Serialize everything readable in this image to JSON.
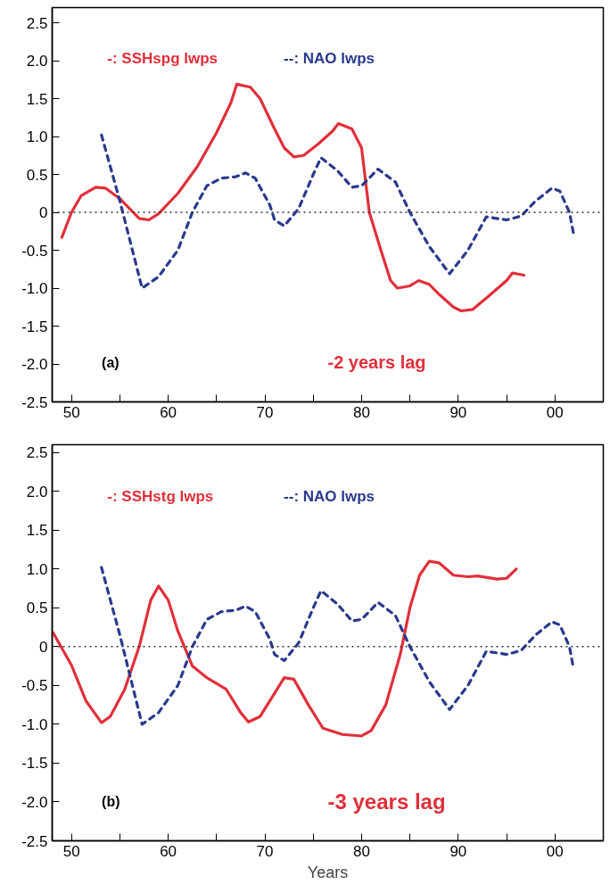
{
  "chart_data": [
    {
      "type": "line",
      "xlim": [
        1948,
        2005
      ],
      "ylim": [
        -2.5,
        2.7
      ],
      "xticks": [
        {
          "value": 1950,
          "label": "50"
        },
        {
          "value": 1955,
          "label": null
        },
        {
          "value": 1960,
          "label": "60"
        },
        {
          "value": 1965,
          "label": null
        },
        {
          "value": 1970,
          "label": "70"
        },
        {
          "value": 1975,
          "label": null
        },
        {
          "value": 1980,
          "label": "80"
        },
        {
          "value": 1985,
          "label": null
        },
        {
          "value": 1990,
          "label": "90"
        },
        {
          "value": 1995,
          "label": null
        },
        {
          "value": 2000,
          "label": "00"
        }
      ],
      "yticks": [
        {
          "value": -2.5,
          "label": "-2.5"
        },
        {
          "value": -2.0,
          "label": "-2.0"
        },
        {
          "value": -1.5,
          "label": "-1.5"
        },
        {
          "value": -1.0,
          "label": "-1.0"
        },
        {
          "value": -0.5,
          "label": "-0.5"
        },
        {
          "value": 0,
          "label": "0"
        },
        {
          "value": 0.5,
          "label": "0.5"
        },
        {
          "value": 1.0,
          "label": "1.0"
        },
        {
          "value": 1.5,
          "label": "1.5"
        },
        {
          "value": 2.0,
          "label": "2.0"
        },
        {
          "value": 2.5,
          "label": "2.5"
        }
      ],
      "grid": false,
      "legend": "top",
      "marker": "none",
      "ref_lines": [
        {
          "axis": "y",
          "value": 0,
          "label": null,
          "color": "#333333",
          "line_style": "dotted"
        }
      ],
      "annotations": [
        "(a)",
        "-2 years lag"
      ],
      "series": [
        {
          "name": "-: SSHspg lwps",
          "color": "#e0303a",
          "line_style": "solid",
          "x": [
            1949.0,
            1950.0,
            1951.0,
            1952.5,
            1953.5,
            1955.0,
            1957.0,
            1958.0,
            1959.0,
            1961.0,
            1963.0,
            1965.0,
            1966.5,
            1967.1,
            1968.5,
            1969.5,
            1971.0,
            1972.0,
            1973.0,
            1974.0,
            1975.5,
            1977.0,
            1977.6,
            1979.0,
            1980.0,
            1980.8,
            1982.0,
            1983.0,
            1983.7,
            1985.0,
            1985.9,
            1987.0,
            1988.0,
            1989.5,
            1990.3,
            1991.5,
            1993.0,
            1995.0,
            1995.6,
            1996.8
          ],
          "values": [
            -0.33,
            0.0,
            0.22,
            0.33,
            0.32,
            0.18,
            -0.08,
            -0.1,
            -0.02,
            0.25,
            0.6,
            1.05,
            1.45,
            1.69,
            1.65,
            1.5,
            1.1,
            0.85,
            0.73,
            0.75,
            0.9,
            1.07,
            1.17,
            1.1,
            0.85,
            0.0,
            -0.5,
            -0.9,
            -1.0,
            -0.97,
            -0.9,
            -0.95,
            -1.08,
            -1.25,
            -1.3,
            -1.28,
            -1.12,
            -0.9,
            -0.8,
            -0.83
          ]
        },
        {
          "name": "--: NAO lwps",
          "color": "#2a3a8c",
          "line_style": "dashed",
          "x": [
            1953.1,
            1955.0,
            1957.3,
            1959.0,
            1961.0,
            1962.5,
            1964.0,
            1965.5,
            1967.0,
            1968.0,
            1969.0,
            1970.5,
            1971.0,
            1972.0,
            1973.5,
            1975.0,
            1975.8,
            1977.5,
            1979.0,
            1980.0,
            1981.7,
            1983.5,
            1985.0,
            1987.0,
            1989.1,
            1991.0,
            1992.9,
            1995.0,
            1996.5,
            1998.0,
            1999.7,
            2000.5,
            2001.5,
            2001.9
          ],
          "values": [
            1.02,
            0.15,
            -1.0,
            -0.85,
            -0.5,
            0.0,
            0.35,
            0.45,
            0.47,
            0.52,
            0.45,
            0.1,
            -0.1,
            -0.18,
            0.05,
            0.5,
            0.72,
            0.55,
            0.33,
            0.35,
            0.57,
            0.4,
            0.0,
            -0.45,
            -0.81,
            -0.5,
            -0.06,
            -0.1,
            -0.05,
            0.15,
            0.32,
            0.28,
            0.0,
            -0.27
          ]
        }
      ]
    },
    {
      "type": "line",
      "xlabel": "Years",
      "xlim": [
        1948,
        2005
      ],
      "ylim": [
        -2.5,
        2.6
      ],
      "xticks": [
        {
          "value": 1950,
          "label": "50"
        },
        {
          "value": 1955,
          "label": null
        },
        {
          "value": 1960,
          "label": "60"
        },
        {
          "value": 1965,
          "label": null
        },
        {
          "value": 1970,
          "label": "70"
        },
        {
          "value": 1975,
          "label": null
        },
        {
          "value": 1980,
          "label": "80"
        },
        {
          "value": 1985,
          "label": null
        },
        {
          "value": 1990,
          "label": "90"
        },
        {
          "value": 1995,
          "label": null
        },
        {
          "value": 2000,
          "label": "00"
        }
      ],
      "yticks": [
        {
          "value": -2.5,
          "label": "-2.5"
        },
        {
          "value": -2.0,
          "label": "-2.0"
        },
        {
          "value": -1.5,
          "label": "-1.5"
        },
        {
          "value": -1.0,
          "label": "-1.0"
        },
        {
          "value": -0.5,
          "label": "-0.5"
        },
        {
          "value": 0,
          "label": "0"
        },
        {
          "value": 0.5,
          "label": "0.5"
        },
        {
          "value": 1.0,
          "label": "1.0"
        },
        {
          "value": 1.5,
          "label": "1.5"
        },
        {
          "value": 2.0,
          "label": "2.0"
        },
        {
          "value": 2.5,
          "label": "2.5"
        }
      ],
      "grid": false,
      "legend": "top",
      "marker": "none",
      "ref_lines": [
        {
          "axis": "y",
          "value": 0,
          "label": null,
          "color": "#333333",
          "line_style": "dotted"
        }
      ],
      "annotations": [
        "(b)",
        "-3 years lag"
      ],
      "series": [
        {
          "name": "-: SSHstg lwps",
          "color": "#e0303a",
          "line_style": "solid",
          "x": [
            1948.1,
            1950.0,
            1951.5,
            1953.1,
            1954.0,
            1955.5,
            1957.0,
            1958.2,
            1959.0,
            1960.0,
            1961.0,
            1962.5,
            1964.0,
            1966.0,
            1967.5,
            1968.3,
            1969.5,
            1971.0,
            1972.0,
            1973.0,
            1974.5,
            1976.0,
            1978.0,
            1980.0,
            1981.0,
            1982.5,
            1984.0,
            1985.0,
            1986.0,
            1987.0,
            1988.0,
            1989.5,
            1991.0,
            1992.0,
            1994.0,
            1995.0,
            1996.0
          ],
          "values": [
            0.18,
            -0.24,
            -0.7,
            -0.98,
            -0.9,
            -0.55,
            0.0,
            0.6,
            0.78,
            0.6,
            0.2,
            -0.25,
            -0.4,
            -0.55,
            -0.85,
            -0.97,
            -0.9,
            -0.6,
            -0.4,
            -0.42,
            -0.75,
            -1.05,
            -1.13,
            -1.15,
            -1.08,
            -0.75,
            -0.1,
            0.5,
            0.92,
            1.1,
            1.08,
            0.92,
            0.9,
            0.91,
            0.87,
            0.88,
            1.0
          ]
        },
        {
          "name": "--: NAO lwps",
          "color": "#2a3a8c",
          "line_style": "dashed",
          "x": [
            1953.1,
            1955.0,
            1957.3,
            1959.0,
            1961.0,
            1962.5,
            1964.0,
            1965.5,
            1967.0,
            1968.0,
            1969.0,
            1970.5,
            1971.0,
            1972.0,
            1973.5,
            1975.0,
            1975.8,
            1977.5,
            1979.0,
            1980.0,
            1981.7,
            1983.5,
            1985.0,
            1987.0,
            1989.1,
            1991.0,
            1992.9,
            1995.0,
            1996.5,
            1998.0,
            1999.7,
            2000.5,
            2001.5,
            2001.9
          ],
          "values": [
            1.02,
            0.15,
            -1.0,
            -0.85,
            -0.5,
            0.0,
            0.35,
            0.45,
            0.47,
            0.52,
            0.45,
            0.1,
            -0.1,
            -0.18,
            0.05,
            0.5,
            0.72,
            0.55,
            0.33,
            0.35,
            0.57,
            0.4,
            0.0,
            -0.45,
            -0.81,
            -0.5,
            -0.06,
            -0.1,
            -0.05,
            0.15,
            0.32,
            0.28,
            0.0,
            -0.27
          ]
        }
      ]
    }
  ]
}
